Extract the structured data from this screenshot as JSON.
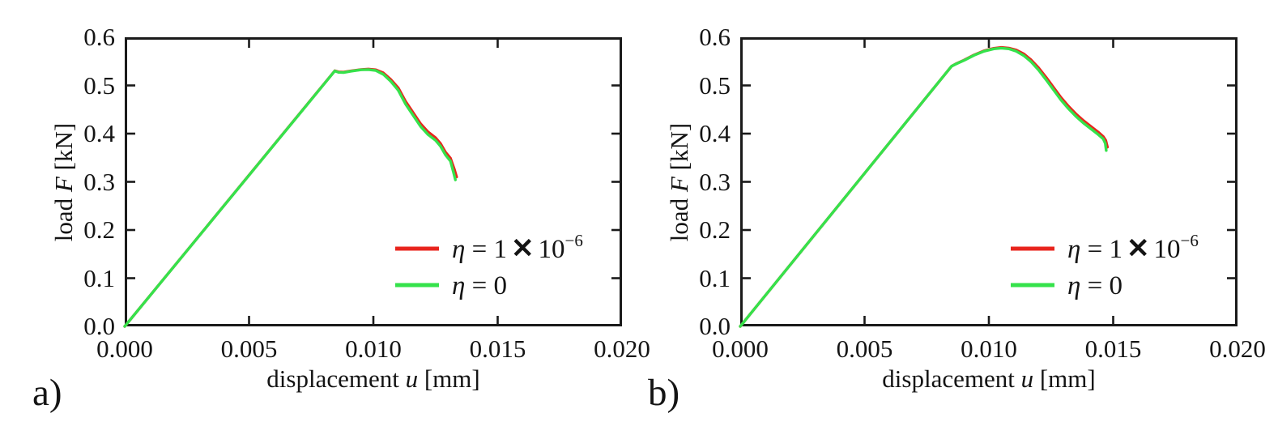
{
  "colors": {
    "background": "#ffffff",
    "axis": "#1a1a1a",
    "text": "#141414",
    "red_series": "#e8241d",
    "green_series": "#35e24b"
  },
  "chart_data": [
    {
      "id": "a",
      "type": "line",
      "panel_label": "a)",
      "xlabel": {
        "prefix": "displacement ",
        "var": "u",
        "suffix": " [mm]"
      },
      "ylabel": {
        "prefix": "load ",
        "var": "F",
        "suffix": " [kN]"
      },
      "xlim": [
        0,
        0.02
      ],
      "ylim": [
        0,
        0.6
      ],
      "xtick_values": [
        0,
        0.005,
        0.01,
        0.015,
        0.02
      ],
      "xtick_labels": [
        "0.000",
        "0.005",
        "0.010",
        "0.015",
        "0.020"
      ],
      "ytick_values": [
        0,
        0.1,
        0.2,
        0.3,
        0.4,
        0.5,
        0.6
      ],
      "ytick_labels": [
        "0.0",
        "0.1",
        "0.2",
        "0.3",
        "0.4",
        "0.5",
        "0.6"
      ],
      "grid": false,
      "legend_position": "lower right",
      "legend": [
        {
          "var": "η",
          "eq": " = ",
          "value": "1",
          "times": "✕",
          "base": "10",
          "sup": "−6"
        },
        {
          "var": "η",
          "eq": " = ",
          "value": "0",
          "times": "",
          "base": "",
          "sup": ""
        }
      ],
      "series": [
        {
          "name": "eta = 1e-6",
          "color": "#e8241d",
          "points": [
            [
              0.0,
              0.0
            ],
            [
              0.00845,
              0.5305
            ],
            [
              0.0086,
              0.528
            ],
            [
              0.0088,
              0.5275
            ],
            [
              0.0091,
              0.53
            ],
            [
              0.0095,
              0.533
            ],
            [
              0.0098,
              0.534
            ],
            [
              0.0101,
              0.5325
            ],
            [
              0.0104,
              0.526
            ],
            [
              0.0107,
              0.5125
            ],
            [
              0.011,
              0.495
            ],
            [
              0.0113,
              0.4665
            ],
            [
              0.0116,
              0.4435
            ],
            [
              0.0119,
              0.4205
            ],
            [
              0.0122,
              0.4035
            ],
            [
              0.0125,
              0.3915
            ],
            [
              0.0127,
              0.3795
            ],
            [
              0.0129,
              0.3615
            ],
            [
              0.0131,
              0.349
            ],
            [
              0.01325,
              0.327
            ],
            [
              0.01335,
              0.31
            ]
          ]
        },
        {
          "name": "eta = 0",
          "color": "#35e24b",
          "points": [
            [
              0.0,
              0.0
            ],
            [
              0.00845,
              0.53
            ],
            [
              0.0086,
              0.5272
            ],
            [
              0.0088,
              0.5268
            ],
            [
              0.0091,
              0.5295
            ],
            [
              0.0095,
              0.5325
            ],
            [
              0.0098,
              0.533
            ],
            [
              0.0101,
              0.531
            ],
            [
              0.0104,
              0.523
            ],
            [
              0.0107,
              0.5085
            ],
            [
              0.011,
              0.49
            ],
            [
              0.0113,
              0.461
            ],
            [
              0.0116,
              0.438
            ],
            [
              0.0119,
              0.415
            ],
            [
              0.0122,
              0.398
            ],
            [
              0.0125,
              0.386
            ],
            [
              0.0127,
              0.374
            ],
            [
              0.0129,
              0.356
            ],
            [
              0.0131,
              0.343
            ],
            [
              0.01322,
              0.32
            ],
            [
              0.0133,
              0.304
            ]
          ]
        }
      ]
    },
    {
      "id": "b",
      "type": "line",
      "panel_label": "b)",
      "xlabel": {
        "prefix": "displacement ",
        "var": "u",
        "suffix": " [mm]"
      },
      "ylabel": {
        "prefix": "load ",
        "var": "F",
        "suffix": " [kN]"
      },
      "xlim": [
        0,
        0.02
      ],
      "ylim": [
        0,
        0.6
      ],
      "xtick_values": [
        0,
        0.005,
        0.01,
        0.015,
        0.02
      ],
      "xtick_labels": [
        "0.000",
        "0.005",
        "0.010",
        "0.015",
        "0.020"
      ],
      "ytick_values": [
        0,
        0.1,
        0.2,
        0.3,
        0.4,
        0.5,
        0.6
      ],
      "ytick_labels": [
        "0.0",
        "0.1",
        "0.2",
        "0.3",
        "0.4",
        "0.5",
        "0.6"
      ],
      "grid": false,
      "legend_position": "lower right",
      "legend": [
        {
          "var": "η",
          "eq": " = ",
          "value": "1",
          "times": "✕",
          "base": "10",
          "sup": "−6"
        },
        {
          "var": "η",
          "eq": " = ",
          "value": "0",
          "times": "",
          "base": "",
          "sup": ""
        }
      ],
      "series": [
        {
          "name": "eta = 1e-6",
          "color": "#e8241d",
          "points": [
            [
              0.0,
              0.0
            ],
            [
              0.0085,
              0.54
            ],
            [
              0.0087,
              0.5455
            ],
            [
              0.009,
              0.5525
            ],
            [
              0.0094,
              0.5632
            ],
            [
              0.0098,
              0.5718
            ],
            [
              0.0102,
              0.577
            ],
            [
              0.0105,
              0.5788
            ],
            [
              0.0108,
              0.5775
            ],
            [
              0.0111,
              0.5735
            ],
            [
              0.0114,
              0.5655
            ],
            [
              0.0117,
              0.553
            ],
            [
              0.012,
              0.5365
            ],
            [
              0.0123,
              0.517
            ],
            [
              0.0126,
              0.496
            ],
            [
              0.0129,
              0.475
            ],
            [
              0.0132,
              0.457
            ],
            [
              0.0135,
              0.441
            ],
            [
              0.0138,
              0.427
            ],
            [
              0.0141,
              0.415
            ],
            [
              0.0144,
              0.403
            ],
            [
              0.0146,
              0.394
            ],
            [
              0.0147,
              0.386
            ],
            [
              0.01477,
              0.372
            ]
          ]
        },
        {
          "name": "eta = 0",
          "color": "#35e24b",
          "points": [
            [
              0.0,
              0.0
            ],
            [
              0.0085,
              0.54
            ],
            [
              0.0087,
              0.545
            ],
            [
              0.009,
              0.552
            ],
            [
              0.0094,
              0.5625
            ],
            [
              0.0098,
              0.571
            ],
            [
              0.0102,
              0.576
            ],
            [
              0.0105,
              0.5775
            ],
            [
              0.0108,
              0.576
            ],
            [
              0.0111,
              0.571
            ],
            [
              0.0114,
              0.562
            ],
            [
              0.0117,
              0.549
            ],
            [
              0.012,
              0.532
            ],
            [
              0.0123,
              0.512
            ],
            [
              0.0126,
              0.491
            ],
            [
              0.0129,
              0.47
            ],
            [
              0.0132,
              0.452
            ],
            [
              0.0135,
              0.436
            ],
            [
              0.0138,
              0.422
            ],
            [
              0.0141,
              0.41
            ],
            [
              0.0144,
              0.398
            ],
            [
              0.0146,
              0.389
            ],
            [
              0.01468,
              0.38
            ],
            [
              0.01472,
              0.365
            ]
          ]
        }
      ]
    }
  ]
}
